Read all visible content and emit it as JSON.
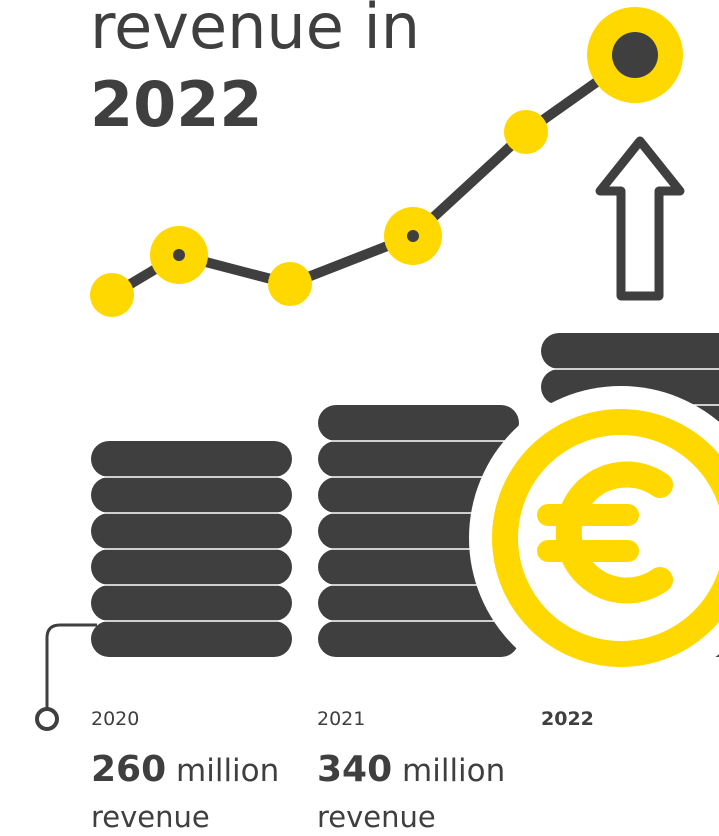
{
  "headline": {
    "line1": "revenue in",
    "line2": "2022"
  },
  "columns": [
    {
      "year": "2020",
      "value": "260",
      "unit": "million",
      "caption": "revenue"
    },
    {
      "year": "2021",
      "value": "340",
      "unit": "million",
      "caption": "revenue"
    },
    {
      "year": "2022"
    }
  ],
  "icons": [
    "trend-line",
    "up-arrow-icon",
    "coin-stack-icon",
    "euro-coin-icon",
    "timeline-pin-icon"
  ],
  "colors": {
    "dark": "#3f3f3f",
    "accent": "#ffd800",
    "background": "#ffffff"
  }
}
